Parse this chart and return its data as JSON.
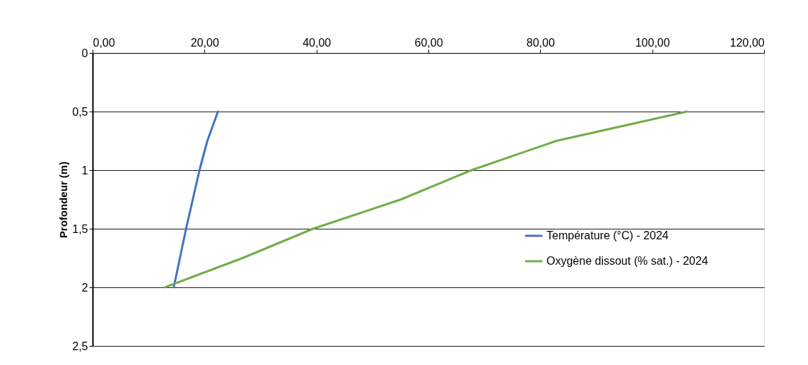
{
  "chart_data": {
    "type": "line",
    "ylabel": "Profondeur (m)",
    "xlim": [
      0,
      120
    ],
    "xticks": [
      {
        "value": 0,
        "label": "0,00"
      },
      {
        "value": 20,
        "label": "20,00"
      },
      {
        "value": 40,
        "label": "40,00"
      },
      {
        "value": 60,
        "label": "60,00"
      },
      {
        "value": 80,
        "label": "80,00"
      },
      {
        "value": 100,
        "label": "100,00"
      },
      {
        "value": 120,
        "label": "120,00"
      }
    ],
    "ylim": [
      2.5,
      0
    ],
    "yticks": [
      0,
      {
        "value": 0.5,
        "label": "0,5"
      },
      1,
      {
        "value": 1.5,
        "label": "1,5"
      },
      2,
      {
        "value": 2.5,
        "label": "2,5"
      }
    ],
    "grid": "y",
    "legend": "right",
    "line_style": "solid",
    "marker": "none",
    "series": [
      {
        "name": "Température (°C) - 2024",
        "color": "#4472c4",
        "x": [
          22.4,
          20.5,
          19.1,
          16.7,
          14.5
        ],
        "values": [
          0.5,
          0.75,
          1,
          1.5,
          2
        ]
      },
      {
        "name": "Oxygène dissout (% sat.) - 2024",
        "color": "#70ad47",
        "x": [
          106.2,
          82.9,
          67.7,
          55.1,
          39.4,
          26.8,
          12.9
        ],
        "values": [
          0.5,
          0.75,
          1,
          1.25,
          1.5,
          1.75,
          2
        ]
      }
    ]
  }
}
